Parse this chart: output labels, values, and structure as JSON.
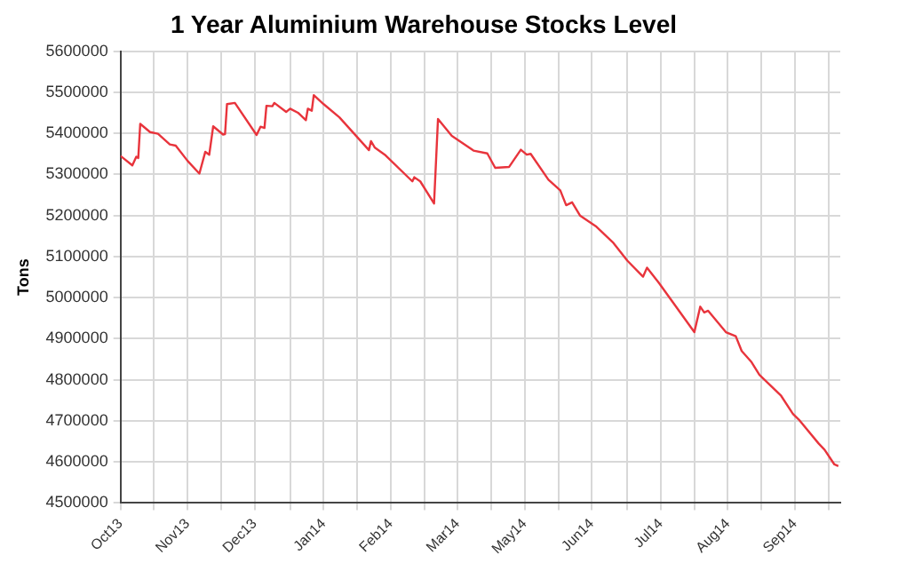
{
  "chart_data": {
    "type": "line",
    "title": "1 Year Aluminium Warehouse Stocks Level",
    "ylabel": "Tons",
    "x": [
      "2013-10-08",
      "2013-10-14",
      "2013-10-16",
      "2013-10-17",
      "2013-10-18",
      "2013-10-23",
      "2013-10-27",
      "2013-11-02",
      "2013-11-05",
      "2013-11-11",
      "2013-11-17",
      "2013-11-20",
      "2013-11-22",
      "2013-11-24",
      "2013-11-29",
      "2013-11-30",
      "2013-12-01",
      "2013-12-05",
      "2013-12-16",
      "2013-12-18",
      "2013-12-20",
      "2013-12-21",
      "2013-12-24",
      "2013-12-25",
      "2013-12-31",
      "2014-01-02",
      "2014-01-06",
      "2014-01-10",
      "2014-01-11",
      "2014-01-13",
      "2014-01-14",
      "2014-01-19",
      "2014-01-27",
      "2014-02-11",
      "2014-02-12",
      "2014-02-14",
      "2014-02-19",
      "2014-03-05",
      "2014-03-06",
      "2014-03-09",
      "2014-03-16",
      "2014-03-18",
      "2014-03-25",
      "2014-04-05",
      "2014-04-12",
      "2014-04-16",
      "2014-04-23",
      "2014-04-29",
      "2014-05-02",
      "2014-05-04",
      "2014-05-13",
      "2014-05-19",
      "2014-05-22",
      "2014-05-25",
      "2014-05-29",
      "2014-06-06",
      "2014-06-15",
      "2014-06-22",
      "2014-06-30",
      "2014-07-02",
      "2014-07-08",
      "2014-07-26",
      "2014-07-29",
      "2014-07-31",
      "2014-08-02",
      "2014-08-11",
      "2014-08-16",
      "2014-08-19",
      "2014-08-24",
      "2014-08-28",
      "2014-09-08",
      "2014-09-14",
      "2014-09-17",
      "2014-09-27",
      "2014-09-30",
      "2014-10-05",
      "2014-10-07"
    ],
    "series": [
      {
        "color": "#e8343c",
        "values": [
          5345000,
          5322000,
          5343000,
          5340000,
          5423000,
          5403000,
          5399000,
          5373000,
          5370000,
          5333000,
          5302000,
          5355000,
          5348000,
          5417000,
          5397000,
          5398000,
          5471000,
          5474000,
          5396000,
          5416000,
          5413000,
          5467000,
          5466000,
          5474000,
          5452000,
          5460000,
          5450000,
          5432000,
          5460000,
          5455000,
          5493000,
          5471000,
          5439000,
          5359000,
          5381000,
          5365000,
          5348000,
          5283000,
          5293000,
          5283000,
          5229000,
          5435000,
          5394000,
          5358000,
          5351000,
          5316000,
          5318000,
          5360000,
          5348000,
          5350000,
          5287000,
          5261000,
          5225000,
          5232000,
          5200000,
          5174000,
          5133000,
          5090000,
          5051000,
          5073000,
          5036000,
          4916000,
          4978000,
          4964000,
          4968000,
          4916000,
          4906000,
          4870000,
          4843000,
          4812000,
          4761000,
          4717000,
          4703000,
          4645000,
          4630000,
          4594000,
          4590000
        ]
      }
    ],
    "xlim": [
      "2013-10-08",
      "2014-10-08"
    ],
    "xticks": [
      {
        "value": "2013-10-08",
        "label": "Oct13"
      },
      {
        "value": "2013-10-25",
        "label": null
      },
      {
        "value": "2013-11-11",
        "label": "Nov13"
      },
      {
        "value": "2013-11-28",
        "label": null
      },
      {
        "value": "2013-12-15",
        "label": "Dec13"
      },
      {
        "value": "2014-01-02",
        "label": null
      },
      {
        "value": "2014-01-19",
        "label": "Jan14"
      },
      {
        "value": "2014-02-05",
        "label": null
      },
      {
        "value": "2014-02-22",
        "label": "Feb14"
      },
      {
        "value": "2014-03-11",
        "label": null
      },
      {
        "value": "2014-03-28",
        "label": "Mar14"
      },
      {
        "value": "2014-04-14",
        "label": null
      },
      {
        "value": "2014-05-01",
        "label": "May14"
      },
      {
        "value": "2014-05-18",
        "label": null
      },
      {
        "value": "2014-06-04",
        "label": "Jun14"
      },
      {
        "value": "2014-06-22",
        "label": null
      },
      {
        "value": "2014-07-09",
        "label": "Jul14"
      },
      {
        "value": "2014-07-26",
        "label": null
      },
      {
        "value": "2014-08-12",
        "label": "Aug14"
      },
      {
        "value": "2014-08-29",
        "label": null
      },
      {
        "value": "2014-09-15",
        "label": "Sep14"
      },
      {
        "value": "2014-10-02",
        "label": null
      }
    ],
    "ylim": [
      4500000,
      5600000
    ],
    "yticks": [
      4500000,
      4600000,
      4700000,
      4800000,
      4900000,
      5000000,
      5100000,
      5200000,
      5300000,
      5400000,
      5500000,
      5600000
    ],
    "grid": true,
    "legend": false,
    "marker": "none",
    "line_style": "solid"
  }
}
